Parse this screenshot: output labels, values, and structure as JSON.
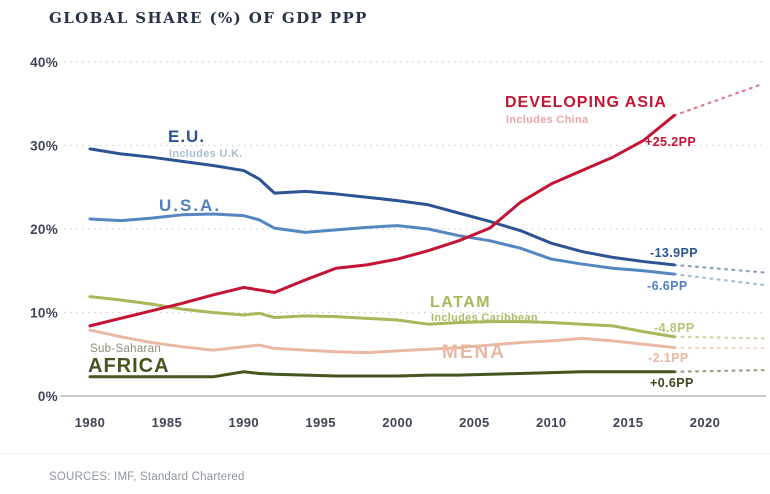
{
  "header": {
    "title": "GLOBAL SHARE (%) OF GDP PPP"
  },
  "footer": {
    "sources": "SOURCES: IMF, Standard Chartered"
  },
  "colors": {
    "title": "#26334a",
    "axis_text": "#3c4655",
    "gridline": "#cdd2d8",
    "zero_axis": "#b3bac2",
    "background": "#ffffff"
  },
  "chart_data": {
    "type": "line",
    "title": "GLOBAL SHARE (%) OF GDP PPP",
    "xlabel": "",
    "ylabel": "",
    "xlim": [
      1978.5,
      2024
    ],
    "ylim": [
      0,
      40
    ],
    "x_ticks": [
      1980,
      1985,
      1990,
      1995,
      2000,
      2005,
      2010,
      2015,
      2020
    ],
    "y_ticks": [
      {
        "label": "40%",
        "value": 40
      },
      {
        "label": "30%",
        "value": 30
      },
      {
        "label": "20%",
        "value": 20
      },
      {
        "label": "10%",
        "value": 10
      },
      {
        "label": "0%",
        "value": 0
      }
    ],
    "grid": "horizontal dotted, solid baseline at 0%",
    "legend_position": "inline series labels",
    "solid_data_end_year": 2018,
    "projection_end_year": 2023.8,
    "years": [
      1980,
      1982,
      1984,
      1986,
      1988,
      1990,
      1991,
      1992,
      1994,
      1996,
      1998,
      2000,
      2002,
      2004,
      2006,
      2008,
      2010,
      2012,
      2014,
      2016,
      2018
    ],
    "series": [
      {
        "id": "eu",
        "name": "E.U.",
        "subtitle": "Includes U.K.",
        "color": "#2c5494",
        "subtitle_color": "#a8bcd3",
        "delta_color": "#2c5494",
        "delta_label": "-13.9PP",
        "values": [
          29.6,
          29.0,
          28.6,
          28.1,
          27.6,
          27.0,
          26.0,
          24.3,
          24.5,
          24.2,
          23.8,
          23.4,
          22.9,
          21.9,
          20.9,
          19.8,
          18.3,
          17.3,
          16.6,
          16.1,
          15.7
        ],
        "projection_value": 14.8
      },
      {
        "id": "usa",
        "name": "U.S.A.",
        "color": "#5487c2",
        "delta_color": "#4d80bd",
        "delta_label": "-6.6PP",
        "values": [
          21.2,
          21.0,
          21.3,
          21.7,
          21.8,
          21.6,
          21.1,
          20.1,
          19.6,
          19.9,
          20.2,
          20.4,
          20.0,
          19.2,
          18.6,
          17.7,
          16.4,
          15.8,
          15.3,
          15.0,
          14.6
        ],
        "projection_value": 13.3
      },
      {
        "id": "asia",
        "name": "DEVELOPING ASIA",
        "subtitle": "Includes China",
        "color": "#c41334",
        "subtitle_color": "#eba6ad",
        "delta_color": "#c41334",
        "delta_label": "+25.2PP",
        "values": [
          8.4,
          9.3,
          10.2,
          11.1,
          12.1,
          13.0,
          12.7,
          12.4,
          13.9,
          15.3,
          15.7,
          16.4,
          17.4,
          18.6,
          20.1,
          23.2,
          25.4,
          27.0,
          28.6,
          30.6,
          33.6
        ],
        "projection_value": 37.4
      },
      {
        "id": "latam",
        "name": "LATAM",
        "subtitle": "Includes Caribbean",
        "color": "#a9b65a",
        "subtitle_color": "#b0bb64",
        "delta_color": "#bcc577",
        "delta_label": "-4.8PP",
        "values": [
          11.9,
          11.5,
          11.0,
          10.4,
          10.0,
          9.7,
          9.9,
          9.4,
          9.6,
          9.5,
          9.3,
          9.1,
          8.6,
          8.8,
          8.9,
          8.9,
          8.8,
          8.6,
          8.4,
          7.7,
          7.1
        ],
        "projection_value": 6.9
      },
      {
        "id": "mena",
        "name": "MENA",
        "color": "#e9b8a4",
        "delta_color": "#e9b8a4",
        "delta_label": "-2.1PP",
        "values": [
          7.9,
          7.1,
          6.4,
          5.9,
          5.5,
          5.9,
          6.1,
          5.7,
          5.5,
          5.3,
          5.2,
          5.4,
          5.6,
          5.8,
          6.1,
          6.4,
          6.6,
          6.9,
          6.6,
          6.2,
          5.8
        ],
        "projection_value": 5.7
      },
      {
        "id": "africa",
        "name": "AFRICA",
        "kicker": "Sub-Saharan",
        "color": "#44551f",
        "kicker_color": "#8e8f77",
        "delta_color": "#39451e",
        "delta_label": "+0.6PP",
        "values": [
          2.3,
          2.3,
          2.3,
          2.3,
          2.3,
          2.9,
          2.7,
          2.6,
          2.5,
          2.4,
          2.4,
          2.4,
          2.5,
          2.5,
          2.6,
          2.7,
          2.8,
          2.9,
          2.9,
          2.9,
          2.9
        ],
        "projection_value": 3.1
      }
    ],
    "sources": "SOURCES: IMF, Standard Chartered"
  }
}
